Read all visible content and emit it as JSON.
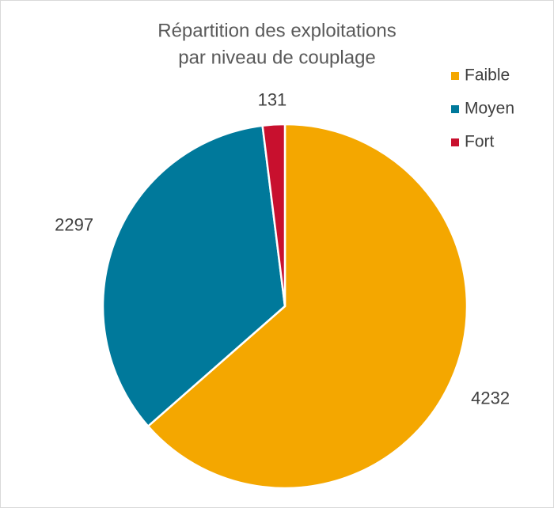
{
  "chart_data": {
    "type": "pie",
    "title": [
      "Répartition des exploitations",
      "par niveau de couplage"
    ],
    "categories": [
      "Faible",
      "Moyen",
      "Fort"
    ],
    "values": [
      4232,
      2297,
      131
    ],
    "colors": [
      "#f4a700",
      "#00799b",
      "#c8102e"
    ],
    "legend": "right"
  }
}
